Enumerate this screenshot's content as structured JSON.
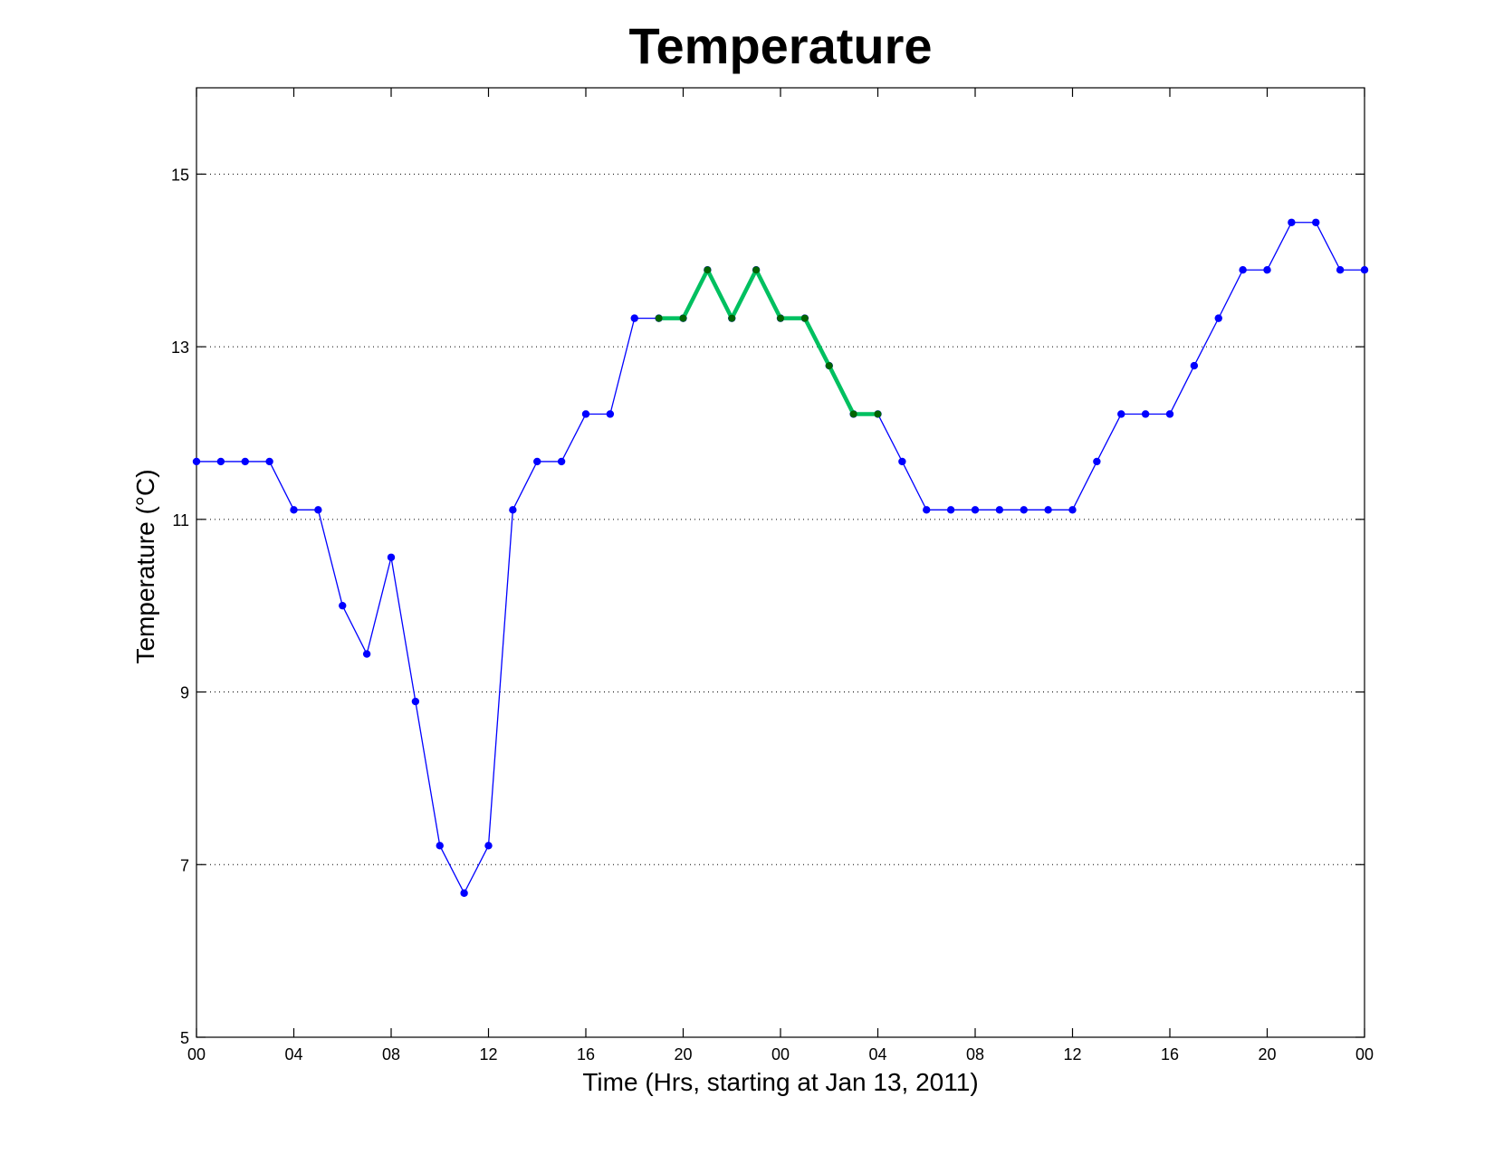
{
  "chart_data": {
    "type": "line",
    "title": "Temperature",
    "xlabel": "Time (Hrs, starting at Jan 13, 2011)",
    "ylabel": "Temperature (°C)",
    "xlim": [
      0,
      48
    ],
    "ylim": [
      5,
      16
    ],
    "x_ticks": [
      {
        "value": 0,
        "label": "00"
      },
      {
        "value": 4,
        "label": "04"
      },
      {
        "value": 8,
        "label": "08"
      },
      {
        "value": 12,
        "label": "12"
      },
      {
        "value": 16,
        "label": "16"
      },
      {
        "value": 20,
        "label": "20"
      },
      {
        "value": 24,
        "label": "00"
      },
      {
        "value": 28,
        "label": "04"
      },
      {
        "value": 32,
        "label": "08"
      },
      {
        "value": 36,
        "label": "12"
      },
      {
        "value": 40,
        "label": "16"
      },
      {
        "value": 44,
        "label": "20"
      },
      {
        "value": 48,
        "label": "00"
      }
    ],
    "y_ticks": [
      {
        "value": 5,
        "label": "5"
      },
      {
        "value": 7,
        "label": "7"
      },
      {
        "value": 9,
        "label": "9"
      },
      {
        "value": 11,
        "label": "11"
      },
      {
        "value": 13,
        "label": "13"
      },
      {
        "value": 15,
        "label": "15"
      }
    ],
    "grid": "horizontal-dotted",
    "series": [
      {
        "color": "#0000ff",
        "marker": "dot",
        "x": [
          0,
          1,
          2,
          3,
          4,
          5,
          6,
          7,
          8,
          9,
          10,
          11,
          12,
          13,
          14,
          15,
          16,
          17,
          18,
          19,
          20,
          21,
          22,
          23,
          24,
          25,
          26,
          27,
          28,
          29,
          30,
          31,
          32,
          33,
          34,
          35,
          36,
          37,
          38,
          39,
          40,
          41,
          42,
          43,
          44,
          45,
          46,
          47,
          48
        ],
        "values": [
          11.67,
          11.67,
          11.67,
          11.67,
          11.11,
          11.11,
          10.0,
          9.44,
          10.56,
          8.89,
          7.22,
          6.67,
          7.22,
          11.11,
          11.67,
          11.67,
          12.22,
          12.22,
          13.33,
          13.33,
          13.33,
          13.89,
          13.33,
          13.89,
          13.33,
          13.33,
          12.78,
          12.22,
          12.22,
          11.67,
          11.11,
          11.11,
          11.11,
          11.11,
          11.11,
          11.11,
          11.11,
          11.67,
          12.22,
          12.22,
          12.22,
          12.78,
          13.33,
          13.89,
          13.89,
          14.44,
          14.44,
          13.89,
          13.89
        ]
      },
      {
        "color": "#00c060",
        "marker_color": "#006400",
        "marker": "dot",
        "x": [
          19,
          20,
          21,
          22,
          23,
          24,
          25,
          26,
          27,
          28
        ],
        "values": [
          13.33,
          13.33,
          13.89,
          13.33,
          13.89,
          13.33,
          13.33,
          12.78,
          12.22,
          12.22
        ]
      }
    ]
  }
}
